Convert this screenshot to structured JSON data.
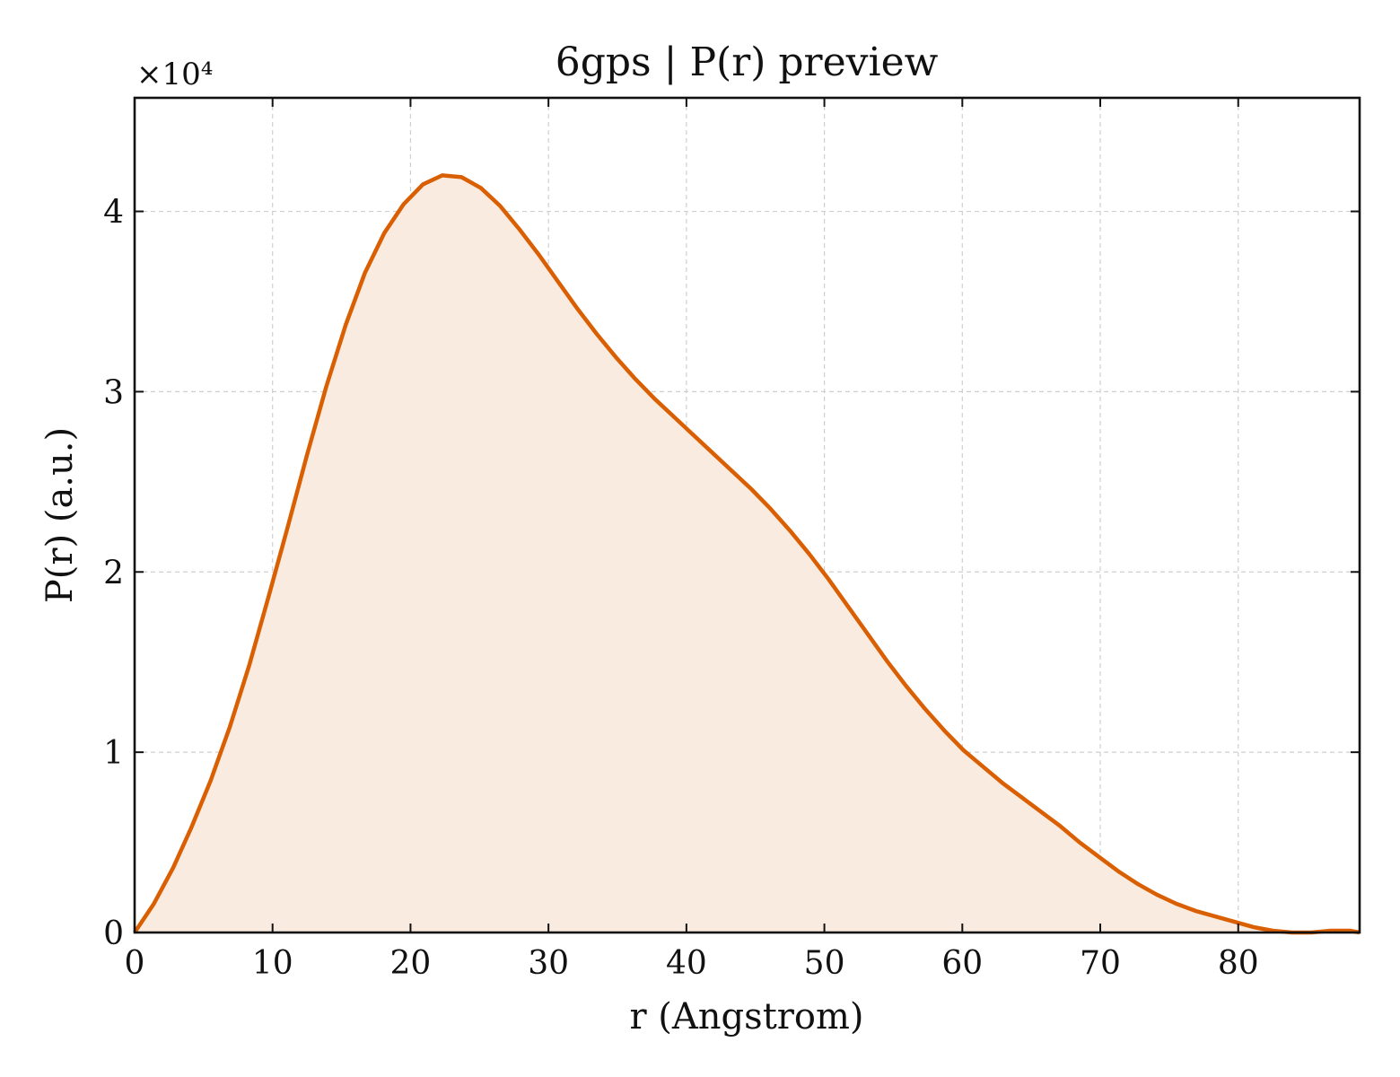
{
  "chart_data": {
    "type": "area",
    "title": "6gps | P(r) preview",
    "xlabel": "r (Angstrom)",
    "ylabel": "P(r) (a.u.)",
    "y_multiplier_label": "×10⁴",
    "xlim": [
      0,
      88.8
    ],
    "ylim": [
      0,
      4.63
    ],
    "xticks": [
      0,
      10,
      20,
      30,
      40,
      50,
      60,
      70,
      80
    ],
    "yticks": [
      0,
      1,
      2,
      3,
      4
    ],
    "grid": true,
    "legend": "none",
    "color": "#d95f02",
    "fill_color": "#f9ebe0",
    "series": [
      {
        "x": [
          0,
          1.4,
          2.8,
          4.1,
          5.5,
          6.9,
          8.3,
          9.7,
          11.1,
          12.5,
          13.9,
          15.3,
          16.7,
          18.1,
          19.5,
          20.9,
          22.3,
          23.7,
          25.1,
          26.5,
          27.9,
          29.3,
          30.7,
          32.1,
          33.5,
          34.9,
          36.3,
          37.7,
          39.1,
          40.5,
          41.9,
          43.3,
          44.7,
          46.1,
          47.5,
          48.9,
          50.3,
          51.7,
          53.1,
          54.5,
          55.9,
          57.3,
          58.7,
          60.1,
          61.5,
          62.9,
          64.3,
          65.7,
          67.1,
          68.5,
          69.9,
          71.3,
          72.7,
          74.1,
          75.5,
          76.9,
          78.3,
          79.7,
          81.1,
          82.5,
          83.9,
          85.3,
          86.7,
          88.1,
          88.8
        ],
        "y": [
          0.0,
          0.16,
          0.36,
          0.58,
          0.84,
          1.14,
          1.48,
          1.86,
          2.25,
          2.65,
          3.03,
          3.37,
          3.66,
          3.88,
          4.04,
          4.15,
          4.2,
          4.19,
          4.13,
          4.03,
          3.9,
          3.76,
          3.61,
          3.46,
          3.32,
          3.19,
          3.07,
          2.96,
          2.86,
          2.76,
          2.66,
          2.56,
          2.46,
          2.35,
          2.23,
          2.1,
          1.96,
          1.81,
          1.66,
          1.51,
          1.37,
          1.24,
          1.12,
          1.01,
          0.92,
          0.83,
          0.75,
          0.67,
          0.59,
          0.5,
          0.42,
          0.34,
          0.27,
          0.21,
          0.16,
          0.12,
          0.09,
          0.06,
          0.03,
          0.01,
          0.0,
          0.0,
          0.01,
          0.01,
          0.0
        ]
      }
    ]
  }
}
